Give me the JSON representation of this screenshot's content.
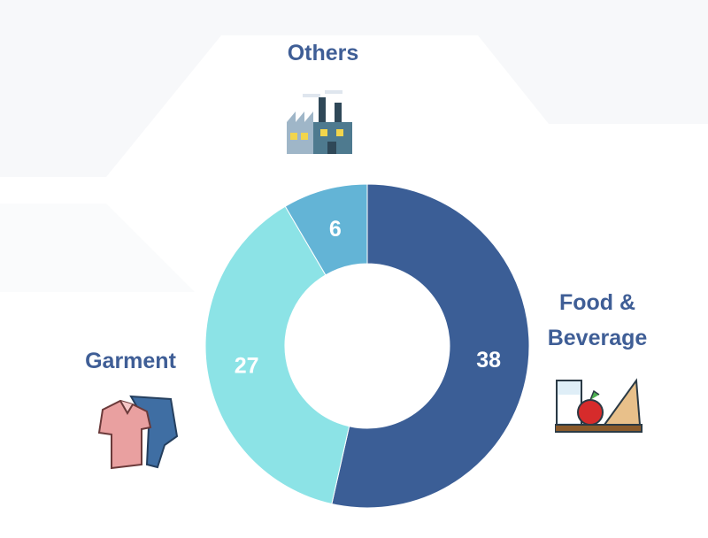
{
  "chart_data": {
    "type": "pie",
    "donut": true,
    "categories": [
      "Food & Beverage",
      "Garment",
      "Others"
    ],
    "values": [
      38,
      27,
      6
    ],
    "colors": [
      "#3b5e96",
      "#8ce3e6",
      "#63b4d6"
    ],
    "data_labels": [
      "38",
      "27",
      "6"
    ],
    "label_color": "#3f5e96",
    "category_labels": {
      "food": [
        "Food &",
        "Beverage"
      ],
      "garment": "Garment",
      "others": "Others"
    },
    "icons": {
      "food": "food-tray-icon",
      "garment": "clothing-icon",
      "others": "factory-icon"
    }
  }
}
